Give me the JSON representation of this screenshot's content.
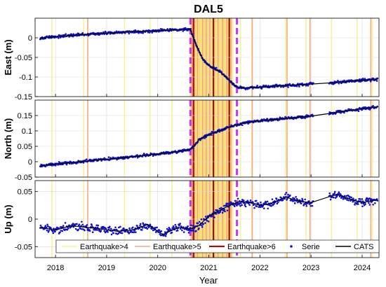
{
  "figure": {
    "title": "DAL5",
    "xlabel": "Year",
    "xlim": [
      2017.6,
      2024.33
    ],
    "xticks": [
      2018,
      2019,
      2020,
      2021,
      2022,
      2023,
      2024
    ],
    "xtick_labels": [
      "2018",
      "2019",
      "2020",
      "2021",
      "2022",
      "2023",
      "2024"
    ]
  },
  "legend": {
    "placement": "bottom-inside",
    "entries": [
      {
        "label": "Earthquake>4",
        "kind": "line",
        "color": "#f7f29a"
      },
      {
        "label": "Earthquake>5",
        "kind": "line",
        "color": "#f4a882"
      },
      {
        "label": "Earthquake>6",
        "kind": "line",
        "color": "#a01010"
      },
      {
        "label": "Serie",
        "kind": "marker",
        "color": "#1010d0"
      },
      {
        "label": "CATS",
        "kind": "line",
        "color": "#000000"
      }
    ]
  },
  "colors": {
    "eq4": "#f7f29a",
    "eq5": "#f4a882",
    "eq6": "#a01010",
    "serie": "#1010d0",
    "cats": "#000000",
    "dashed_marker": "#cc33ee",
    "grid": "#d9d9d9"
  },
  "events": {
    "dashed_lines": [
      2020.64,
      2021.55
    ],
    "eq4": [
      2017.93,
      2018.55,
      2019.35,
      2019.85,
      2020.28,
      2020.67,
      2020.7,
      2020.74,
      2020.77,
      2020.82,
      2020.86,
      2020.92,
      2020.98,
      2021.03,
      2021.08,
      2021.14,
      2021.2,
      2021.26,
      2021.3,
      2021.37,
      2021.42,
      2021.47,
      2021.62,
      2021.84,
      2022.5,
      2022.9,
      2023.4,
      2023.9,
      2024.2
    ],
    "eq5": [
      2018.63,
      2020.67,
      2020.72,
      2020.78,
      2020.88,
      2020.95,
      2021.02,
      2021.1,
      2021.18,
      2021.27,
      2021.35,
      2021.44,
      2021.85,
      2022.53,
      2022.98,
      2024.17
    ],
    "eq6": [
      2020.7,
      2021.09,
      2021.4
    ]
  },
  "chart_data": [
    {
      "type": "scatter",
      "ylabel": "East (m)",
      "ylim": [
        -0.15,
        0.05
      ],
      "yticks": [
        -0.15,
        -0.1,
        -0.05,
        0
      ],
      "ytick_labels": [
        "-0.15",
        "-0.1",
        "-0.05",
        "0"
      ],
      "grid": true,
      "series": [
        {
          "name": "Serie",
          "kind": "points",
          "x": [
            2017.7,
            2018.0,
            2018.5,
            2019.0,
            2019.5,
            2020.0,
            2020.4,
            2020.64,
            2020.7,
            2020.8,
            2020.9,
            2021.0,
            2021.2,
            2021.4,
            2021.55,
            2021.7,
            2022.0,
            2022.5,
            2023.0,
            2023.5,
            2024.0,
            2024.3
          ],
          "y": [
            -0.001,
            0.003,
            0.008,
            0.012,
            0.015,
            0.018,
            0.021,
            0.022,
            0.0,
            -0.032,
            -0.058,
            -0.07,
            -0.085,
            -0.108,
            -0.126,
            -0.128,
            -0.126,
            -0.122,
            -0.118,
            -0.114,
            -0.108,
            -0.106
          ]
        },
        {
          "name": "CATS",
          "kind": "line",
          "x": [
            2017.7,
            2018.0,
            2018.5,
            2019.0,
            2019.5,
            2020.0,
            2020.4,
            2020.64,
            2020.7,
            2020.8,
            2020.9,
            2021.0,
            2021.2,
            2021.4,
            2021.55,
            2021.7,
            2022.0,
            2022.5,
            2023.0,
            2023.5,
            2024.0,
            2024.3
          ],
          "y": [
            -0.001,
            0.003,
            0.008,
            0.012,
            0.015,
            0.018,
            0.021,
            0.022,
            0.0,
            -0.032,
            -0.058,
            -0.07,
            -0.085,
            -0.108,
            -0.126,
            -0.128,
            -0.126,
            -0.122,
            -0.118,
            -0.114,
            -0.108,
            -0.106
          ]
        }
      ]
    },
    {
      "type": "scatter",
      "ylabel": "North (m)",
      "ylim": [
        -0.05,
        0.2
      ],
      "yticks": [
        -0.05,
        0,
        0.05,
        0.1,
        0.15
      ],
      "ytick_labels": [
        "-0.05",
        "0",
        "0.05",
        "0.1",
        "0.15"
      ],
      "grid": true,
      "series": [
        {
          "name": "Serie",
          "kind": "points",
          "x": [
            2017.7,
            2018.0,
            2018.5,
            2019.0,
            2019.5,
            2020.0,
            2020.4,
            2020.64,
            2020.7,
            2020.8,
            2020.9,
            2021.0,
            2021.2,
            2021.4,
            2021.55,
            2021.7,
            2022.0,
            2022.5,
            2023.0,
            2023.5,
            2024.0,
            2024.3
          ],
          "y": [
            -0.013,
            -0.008,
            0.0,
            0.008,
            0.016,
            0.025,
            0.033,
            0.04,
            0.05,
            0.07,
            0.08,
            0.088,
            0.1,
            0.112,
            0.12,
            0.126,
            0.133,
            0.14,
            0.148,
            0.16,
            0.172,
            0.178
          ]
        },
        {
          "name": "CATS",
          "kind": "line",
          "x": [
            2017.7,
            2018.0,
            2018.5,
            2019.0,
            2019.5,
            2020.0,
            2020.4,
            2020.64,
            2020.7,
            2020.8,
            2020.9,
            2021.0,
            2021.2,
            2021.4,
            2021.55,
            2021.7,
            2022.0,
            2022.5,
            2023.0,
            2023.5,
            2024.0,
            2024.3
          ],
          "y": [
            -0.013,
            -0.008,
            0.0,
            0.008,
            0.016,
            0.025,
            0.033,
            0.04,
            0.05,
            0.07,
            0.08,
            0.088,
            0.1,
            0.112,
            0.12,
            0.126,
            0.133,
            0.14,
            0.148,
            0.16,
            0.172,
            0.178
          ]
        }
      ]
    },
    {
      "type": "scatter",
      "ylabel": "Up (m)",
      "ylim": [
        -0.07,
        0.07
      ],
      "yticks": [
        -0.05,
        0,
        0.05
      ],
      "ytick_labels": [
        "-0.05",
        "0",
        "0.05"
      ],
      "grid": true,
      "series": [
        {
          "name": "Serie",
          "kind": "points",
          "x": [
            2017.7,
            2018.0,
            2018.3,
            2018.6,
            2018.9,
            2019.2,
            2019.5,
            2019.8,
            2020.1,
            2020.4,
            2020.64,
            2020.8,
            2021.0,
            2021.2,
            2021.4,
            2021.6,
            2021.8,
            2022.0,
            2022.2,
            2022.5,
            2022.8,
            2023.0,
            2023.5,
            2023.8,
            2024.0,
            2024.3
          ],
          "y": [
            -0.015,
            -0.02,
            -0.012,
            -0.015,
            -0.018,
            -0.022,
            -0.02,
            -0.01,
            -0.028,
            -0.015,
            -0.018,
            -0.012,
            0.005,
            0.015,
            0.025,
            0.032,
            0.03,
            0.025,
            0.028,
            0.04,
            0.032,
            0.03,
            0.045,
            0.035,
            0.03,
            0.035
          ]
        },
        {
          "name": "CATS",
          "kind": "line",
          "x": [
            2017.7,
            2018.0,
            2018.3,
            2018.6,
            2018.9,
            2019.2,
            2019.5,
            2019.8,
            2020.1,
            2020.4,
            2020.64,
            2020.8,
            2021.0,
            2021.2,
            2021.4,
            2021.6,
            2021.8,
            2022.0,
            2022.2,
            2022.5,
            2022.8,
            2023.0,
            2023.5,
            2023.8,
            2024.0,
            2024.3
          ],
          "y": [
            -0.015,
            -0.02,
            -0.012,
            -0.015,
            -0.018,
            -0.022,
            -0.02,
            -0.01,
            -0.028,
            -0.015,
            -0.018,
            -0.012,
            0.005,
            0.015,
            0.025,
            0.032,
            0.03,
            0.025,
            0.028,
            0.04,
            0.032,
            0.03,
            0.045,
            0.035,
            0.03,
            0.035
          ]
        }
      ]
    }
  ]
}
